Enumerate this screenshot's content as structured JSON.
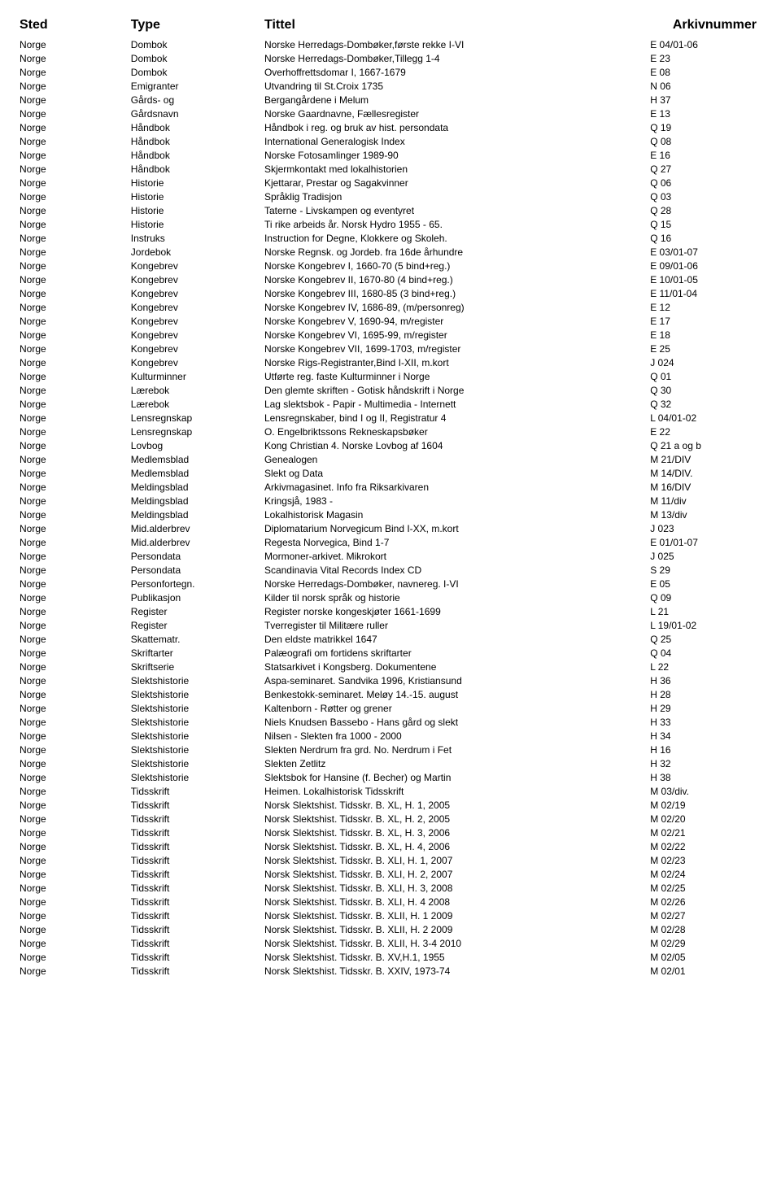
{
  "headers": {
    "sted": "Sted",
    "type": "Type",
    "tittel": "Tittel",
    "arkiv": "Arkivnummer"
  },
  "rows": [
    {
      "sted": "Norge",
      "type": "Dombok",
      "tittel": "Norske Herredags-Dombøker,første rekke I-VI",
      "arkiv": "E 04/01-06"
    },
    {
      "sted": "Norge",
      "type": "Dombok",
      "tittel": "Norske Herredags-Dombøker,Tillegg 1-4",
      "arkiv": "E 23"
    },
    {
      "sted": "Norge",
      "type": "Dombok",
      "tittel": "Overhoffrettsdomar I, 1667-1679",
      "arkiv": "E 08"
    },
    {
      "sted": "Norge",
      "type": "Emigranter",
      "tittel": "Utvandring til St.Croix 1735",
      "arkiv": "N 06"
    },
    {
      "sted": "Norge",
      "type": "Gårds- og",
      "tittel": "Bergangårdene i Melum",
      "arkiv": "H 37"
    },
    {
      "sted": "Norge",
      "type": "Gårdsnavn",
      "tittel": "Norske Gaardnavne, Fællesregister",
      "arkiv": "E 13"
    },
    {
      "sted": "Norge",
      "type": "Håndbok",
      "tittel": "Håndbok i reg. og bruk av hist. persondata",
      "arkiv": "Q 19"
    },
    {
      "sted": "Norge",
      "type": "Håndbok",
      "tittel": "International Generalogisk Index",
      "arkiv": "Q 08"
    },
    {
      "sted": "Norge",
      "type": "Håndbok",
      "tittel": "Norske Fotosamlinger 1989-90",
      "arkiv": "E 16"
    },
    {
      "sted": "Norge",
      "type": "Håndbok",
      "tittel": "Skjermkontakt med lokalhistorien",
      "arkiv": "Q 27"
    },
    {
      "sted": "Norge",
      "type": "Historie",
      "tittel": "Kjettarar, Prestar og Sagakvinner",
      "arkiv": "Q 06"
    },
    {
      "sted": "Norge",
      "type": "Historie",
      "tittel": "Språklig Tradisjon",
      "arkiv": "Q 03"
    },
    {
      "sted": "Norge",
      "type": "Historie",
      "tittel": "Taterne - Livskampen og eventyret",
      "arkiv": "Q 28"
    },
    {
      "sted": "Norge",
      "type": "Historie",
      "tittel": "Ti rike arbeids år. Norsk Hydro 1955 - 65.",
      "arkiv": "Q 15"
    },
    {
      "sted": "Norge",
      "type": "Instruks",
      "tittel": "Instruction for Degne, Klokkere og Skoleh.",
      "arkiv": "Q 16"
    },
    {
      "sted": "Norge",
      "type": "Jordebok",
      "tittel": "Norske Regnsk. og Jordeb. fra 16de århundre",
      "arkiv": "E 03/01-07"
    },
    {
      "sted": "Norge",
      "type": "Kongebrev",
      "tittel": "Norske Kongebrev I, 1660-70 (5 bind+reg.)",
      "arkiv": "E 09/01-06"
    },
    {
      "sted": "Norge",
      "type": "Kongebrev",
      "tittel": "Norske Kongebrev II, 1670-80 (4 bind+reg.)",
      "arkiv": "E 10/01-05"
    },
    {
      "sted": "Norge",
      "type": "Kongebrev",
      "tittel": "Norske Kongebrev III, 1680-85 (3 bind+reg.)",
      "arkiv": "E 11/01-04"
    },
    {
      "sted": "Norge",
      "type": "Kongebrev",
      "tittel": "Norske Kongebrev IV, 1686-89, (m/personreg)",
      "arkiv": "E 12"
    },
    {
      "sted": "Norge",
      "type": "Kongebrev",
      "tittel": "Norske Kongebrev V, 1690-94, m/register",
      "arkiv": "E 17"
    },
    {
      "sted": "Norge",
      "type": "Kongebrev",
      "tittel": "Norske Kongebrev VI, 1695-99, m/register",
      "arkiv": "E 18"
    },
    {
      "sted": "Norge",
      "type": "Kongebrev",
      "tittel": "Norske Kongebrev VII, 1699-1703, m/register",
      "arkiv": "E 25"
    },
    {
      "sted": "Norge",
      "type": "Kongebrev",
      "tittel": "Norske Rigs-Registranter,Bind I-XII, m.kort",
      "arkiv": "J 024"
    },
    {
      "sted": "Norge",
      "type": "Kulturminner",
      "tittel": "Utførte reg. faste Kulturminner i Norge",
      "arkiv": "Q 01"
    },
    {
      "sted": "Norge",
      "type": "Lærebok",
      "tittel": "Den glemte skriften - Gotisk håndskrift i Norge",
      "arkiv": "Q 30"
    },
    {
      "sted": "Norge",
      "type": "Lærebok",
      "tittel": "Lag slektsbok - Papir - Multimedia - Internett",
      "arkiv": "Q 32"
    },
    {
      "sted": "Norge",
      "type": "Lensregnskap",
      "tittel": "Lensregnskaber, bind I og II, Registratur 4",
      "arkiv": "L 04/01-02"
    },
    {
      "sted": "Norge",
      "type": "Lensregnskap",
      "tittel": "O. Engelbriktssons Rekneskapsbøker",
      "arkiv": "E 22"
    },
    {
      "sted": "Norge",
      "type": "Lovbog",
      "tittel": "Kong Christian 4. Norske Lovbog af 1604",
      "arkiv": "Q 21 a og b"
    },
    {
      "sted": "Norge",
      "type": "Medlemsblad",
      "tittel": "Genealogen",
      "arkiv": "M 21/DIV"
    },
    {
      "sted": "Norge",
      "type": "Medlemsblad",
      "tittel": "Slekt og Data",
      "arkiv": "M 14/DIV."
    },
    {
      "sted": "Norge",
      "type": "Meldingsblad",
      "tittel": "Arkivmagasinet. Info fra Riksarkivaren",
      "arkiv": "M 16/DIV"
    },
    {
      "sted": "Norge",
      "type": "Meldingsblad",
      "tittel": "Kringsjå, 1983 -",
      "arkiv": "M 11/div"
    },
    {
      "sted": "Norge",
      "type": "Meldingsblad",
      "tittel": "Lokalhistorisk Magasin",
      "arkiv": "M 13/div"
    },
    {
      "sted": "Norge",
      "type": "Mid.alderbrev",
      "tittel": "Diplomatarium Norvegicum Bind I-XX, m.kort",
      "arkiv": "J 023"
    },
    {
      "sted": "Norge",
      "type": "Mid.alderbrev",
      "tittel": "Regesta Norvegica, Bind 1-7",
      "arkiv": "E 01/01-07"
    },
    {
      "sted": "Norge",
      "type": "Persondata",
      "tittel": "Mormoner-arkivet. Mikrokort",
      "arkiv": "J 025"
    },
    {
      "sted": "Norge",
      "type": "Persondata",
      "tittel": "Scandinavia Vital Records Index CD",
      "arkiv": "S 29"
    },
    {
      "sted": "Norge",
      "type": "Personfortegn.",
      "tittel": "Norske Herredags-Dombøker, navnereg. I-VI",
      "arkiv": "E 05"
    },
    {
      "sted": "Norge",
      "type": "Publikasjon",
      "tittel": "Kilder til norsk språk og historie",
      "arkiv": "Q 09"
    },
    {
      "sted": "Norge",
      "type": "Register",
      "tittel": "Register norske kongeskjøter 1661-1699",
      "arkiv": "L 21"
    },
    {
      "sted": "Norge",
      "type": "Register",
      "tittel": "Tverregister til Militære ruller",
      "arkiv": "L 19/01-02"
    },
    {
      "sted": "Norge",
      "type": "Skattematr.",
      "tittel": "Den eldste matrikkel 1647",
      "arkiv": "Q 25"
    },
    {
      "sted": "Norge",
      "type": "Skriftarter",
      "tittel": "Palæografi om fortidens skriftarter",
      "arkiv": "Q 04"
    },
    {
      "sted": "Norge",
      "type": "Skriftserie",
      "tittel": "Statsarkivet i Kongsberg. Dokumentene",
      "arkiv": "L 22"
    },
    {
      "sted": "Norge",
      "type": "Slektshistorie",
      "tittel": "Aspa-seminaret. Sandvika 1996, Kristiansund",
      "arkiv": "H 36"
    },
    {
      "sted": "Norge",
      "type": "Slektshistorie",
      "tittel": "Benkestokk-seminaret. Meløy 14.-15. august",
      "arkiv": "H 28"
    },
    {
      "sted": "Norge",
      "type": "Slektshistorie",
      "tittel": "Kaltenborn - Røtter og grener",
      "arkiv": "H 29"
    },
    {
      "sted": "Norge",
      "type": "Slektshistorie",
      "tittel": "Niels Knudsen Bassebo - Hans gård og slekt",
      "arkiv": "H 33"
    },
    {
      "sted": "Norge",
      "type": "Slektshistorie",
      "tittel": "Nilsen - Slekten fra 1000 - 2000",
      "arkiv": "H 34"
    },
    {
      "sted": "Norge",
      "type": "Slektshistorie",
      "tittel": "Slekten Nerdrum fra grd. No. Nerdrum i Fet",
      "arkiv": "H 16"
    },
    {
      "sted": "Norge",
      "type": "Slektshistorie",
      "tittel": "Slekten Zetlitz",
      "arkiv": "H 32"
    },
    {
      "sted": "Norge",
      "type": "Slektshistorie",
      "tittel": "Slektsbok for Hansine (f. Becher) og Martin",
      "arkiv": "H 38"
    },
    {
      "sted": "Norge",
      "type": "Tidsskrift",
      "tittel": "Heimen. Lokalhistorisk Tidsskrift",
      "arkiv": "M 03/div."
    },
    {
      "sted": "Norge",
      "type": "Tidsskrift",
      "tittel": "Norsk Slektshist. Tidsskr. B. XL, H. 1, 2005",
      "arkiv": "M 02/19"
    },
    {
      "sted": "Norge",
      "type": "Tidsskrift",
      "tittel": "Norsk Slektshist. Tidsskr. B. XL, H. 2, 2005",
      "arkiv": "M 02/20"
    },
    {
      "sted": "Norge",
      "type": "Tidsskrift",
      "tittel": "Norsk Slektshist. Tidsskr. B. XL, H. 3, 2006",
      "arkiv": "M 02/21"
    },
    {
      "sted": "Norge",
      "type": "Tidsskrift",
      "tittel": "Norsk Slektshist. Tidsskr. B. XL, H. 4, 2006",
      "arkiv": "M 02/22"
    },
    {
      "sted": "Norge",
      "type": "Tidsskrift",
      "tittel": "Norsk Slektshist. Tidsskr. B. XLI, H. 1, 2007",
      "arkiv": "M 02/23"
    },
    {
      "sted": "Norge",
      "type": "Tidsskrift",
      "tittel": "Norsk Slektshist. Tidsskr. B. XLI, H. 2, 2007",
      "arkiv": "M 02/24"
    },
    {
      "sted": "Norge",
      "type": "Tidsskrift",
      "tittel": "Norsk Slektshist. Tidsskr. B. XLI, H. 3, 2008",
      "arkiv": "M 02/25"
    },
    {
      "sted": "Norge",
      "type": "Tidsskrift",
      "tittel": "Norsk Slektshist. Tidsskr. B. XLI, H. 4 2008",
      "arkiv": "M 02/26"
    },
    {
      "sted": "Norge",
      "type": "Tidsskrift",
      "tittel": "Norsk Slektshist. Tidsskr. B. XLII, H. 1 2009",
      "arkiv": "M 02/27"
    },
    {
      "sted": "Norge",
      "type": "Tidsskrift",
      "tittel": "Norsk Slektshist. Tidsskr. B. XLII, H. 2 2009",
      "arkiv": "M 02/28"
    },
    {
      "sted": "Norge",
      "type": "Tidsskrift",
      "tittel": "Norsk Slektshist. Tidsskr. B. XLII, H. 3-4 2010",
      "arkiv": "M 02/29"
    },
    {
      "sted": "Norge",
      "type": "Tidsskrift",
      "tittel": "Norsk Slektshist. Tidsskr. B. XV,H.1, 1955",
      "arkiv": "M 02/05"
    },
    {
      "sted": "Norge",
      "type": "Tidsskrift",
      "tittel": "Norsk Slektshist. Tidsskr. B. XXIV, 1973-74",
      "arkiv": "M 02/01"
    }
  ]
}
